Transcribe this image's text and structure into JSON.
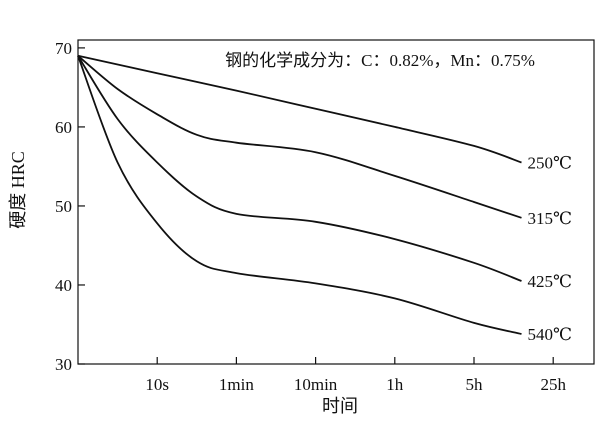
{
  "chart_data": {
    "type": "line",
    "annotation": "钢的化学成分为：C：0.82%，Mn：0.75%",
    "xlabel": "时间",
    "ylabel": "硬度 HRC",
    "x_ticks": [
      "10s",
      "1min",
      "10min",
      "1h",
      "5h",
      "25h"
    ],
    "y_ticks": [
      30,
      40,
      50,
      60,
      70
    ],
    "ylim": [
      30,
      71
    ],
    "x_scale": "log",
    "grid": false,
    "series": [
      {
        "name": "250℃",
        "points": [
          [
            0,
            69
          ],
          [
            1,
            66.8
          ],
          [
            2,
            64.6
          ],
          [
            3,
            62.3
          ],
          [
            4,
            60
          ],
          [
            5,
            57.6
          ],
          [
            5.6,
            55.5
          ]
        ]
      },
      {
        "name": "315℃",
        "points": [
          [
            0,
            69
          ],
          [
            0.5,
            64.8
          ],
          [
            1,
            61.6
          ],
          [
            1.5,
            59
          ],
          [
            2,
            58
          ],
          [
            3,
            56.8
          ],
          [
            4,
            53.8
          ],
          [
            5,
            50.5
          ],
          [
            5.6,
            48.5
          ]
        ]
      },
      {
        "name": "425℃",
        "points": [
          [
            0,
            69
          ],
          [
            0.5,
            61
          ],
          [
            1,
            55.5
          ],
          [
            1.5,
            51.2
          ],
          [
            2,
            49
          ],
          [
            3,
            48
          ],
          [
            4,
            45.8
          ],
          [
            5,
            42.8
          ],
          [
            5.6,
            40.5
          ]
        ]
      },
      {
        "name": "540℃",
        "points": [
          [
            0,
            69
          ],
          [
            0.5,
            55.5
          ],
          [
            1,
            47.8
          ],
          [
            1.5,
            43
          ],
          [
            2,
            41.5
          ],
          [
            3,
            40.2
          ],
          [
            4,
            38.3
          ],
          [
            5,
            35.2
          ],
          [
            5.6,
            33.8
          ]
        ]
      }
    ]
  }
}
